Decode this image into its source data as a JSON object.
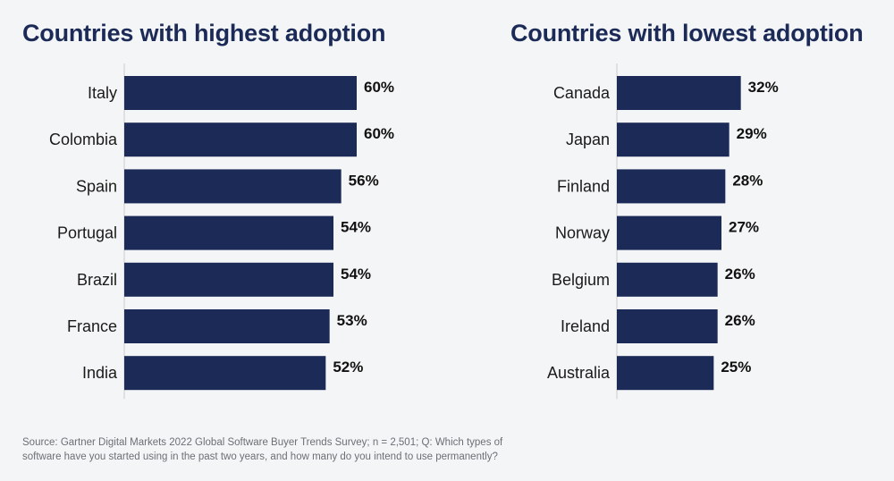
{
  "chart_data": [
    {
      "type": "bar",
      "orientation": "horizontal",
      "title": "Countries with highest adoption",
      "categories": [
        "Italy",
        "Colombia",
        "Spain",
        "Portugal",
        "Brazil",
        "France",
        "India"
      ],
      "values": [
        60,
        60,
        56,
        54,
        54,
        53,
        52
      ],
      "value_labels": [
        "60%",
        "60%",
        "56%",
        "54%",
        "54%",
        "53%",
        "52%"
      ],
      "unit": "%",
      "xlim": [
        0,
        60
      ],
      "grid": false,
      "legend": "none"
    },
    {
      "type": "bar",
      "orientation": "horizontal",
      "title": "Countries with lowest adoption",
      "categories": [
        "Canada",
        "Japan",
        "Finland",
        "Norway",
        "Belgium",
        "Ireland",
        "Australia"
      ],
      "values": [
        32,
        29,
        28,
        27,
        26,
        26,
        25
      ],
      "value_labels": [
        "32%",
        "29%",
        "28%",
        "27%",
        "26%",
        "26%",
        "25%"
      ],
      "unit": "%",
      "xlim": [
        0,
        60
      ],
      "grid": false,
      "legend": "none"
    }
  ],
  "colors": {
    "bar": "#1b2a57",
    "title": "#1b2a57",
    "axis": "#cccccc",
    "background": "#f4f5f6"
  },
  "footer": {
    "source_line1": "Source: Gartner Digital Markets 2022 Global Software Buyer Trends Survey; n = 2,501; Q: Which types of",
    "source_line2": "software have you started using in the past two years, and how many do you intend to use permanently?"
  }
}
